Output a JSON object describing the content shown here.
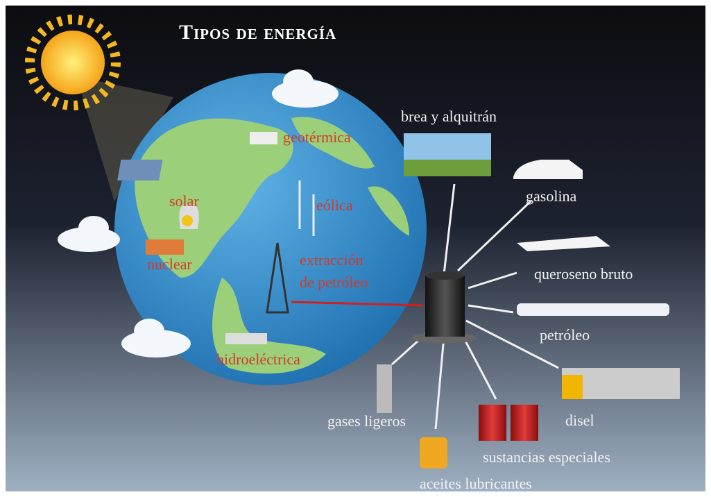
{
  "title": "Tipos de energía",
  "sources": [
    "geotérmica",
    "solar",
    "eólica",
    "nuclear",
    "hidroeléctrica"
  ],
  "extraction": [
    "extracción",
    "de petróleo"
  ],
  "products": [
    "brea y alquitrán",
    "gasolina",
    "queroseno bruto",
    "petróleo",
    "disel",
    "sustancias especiales",
    "aceites lubricantes",
    "gases ligeros"
  ]
}
